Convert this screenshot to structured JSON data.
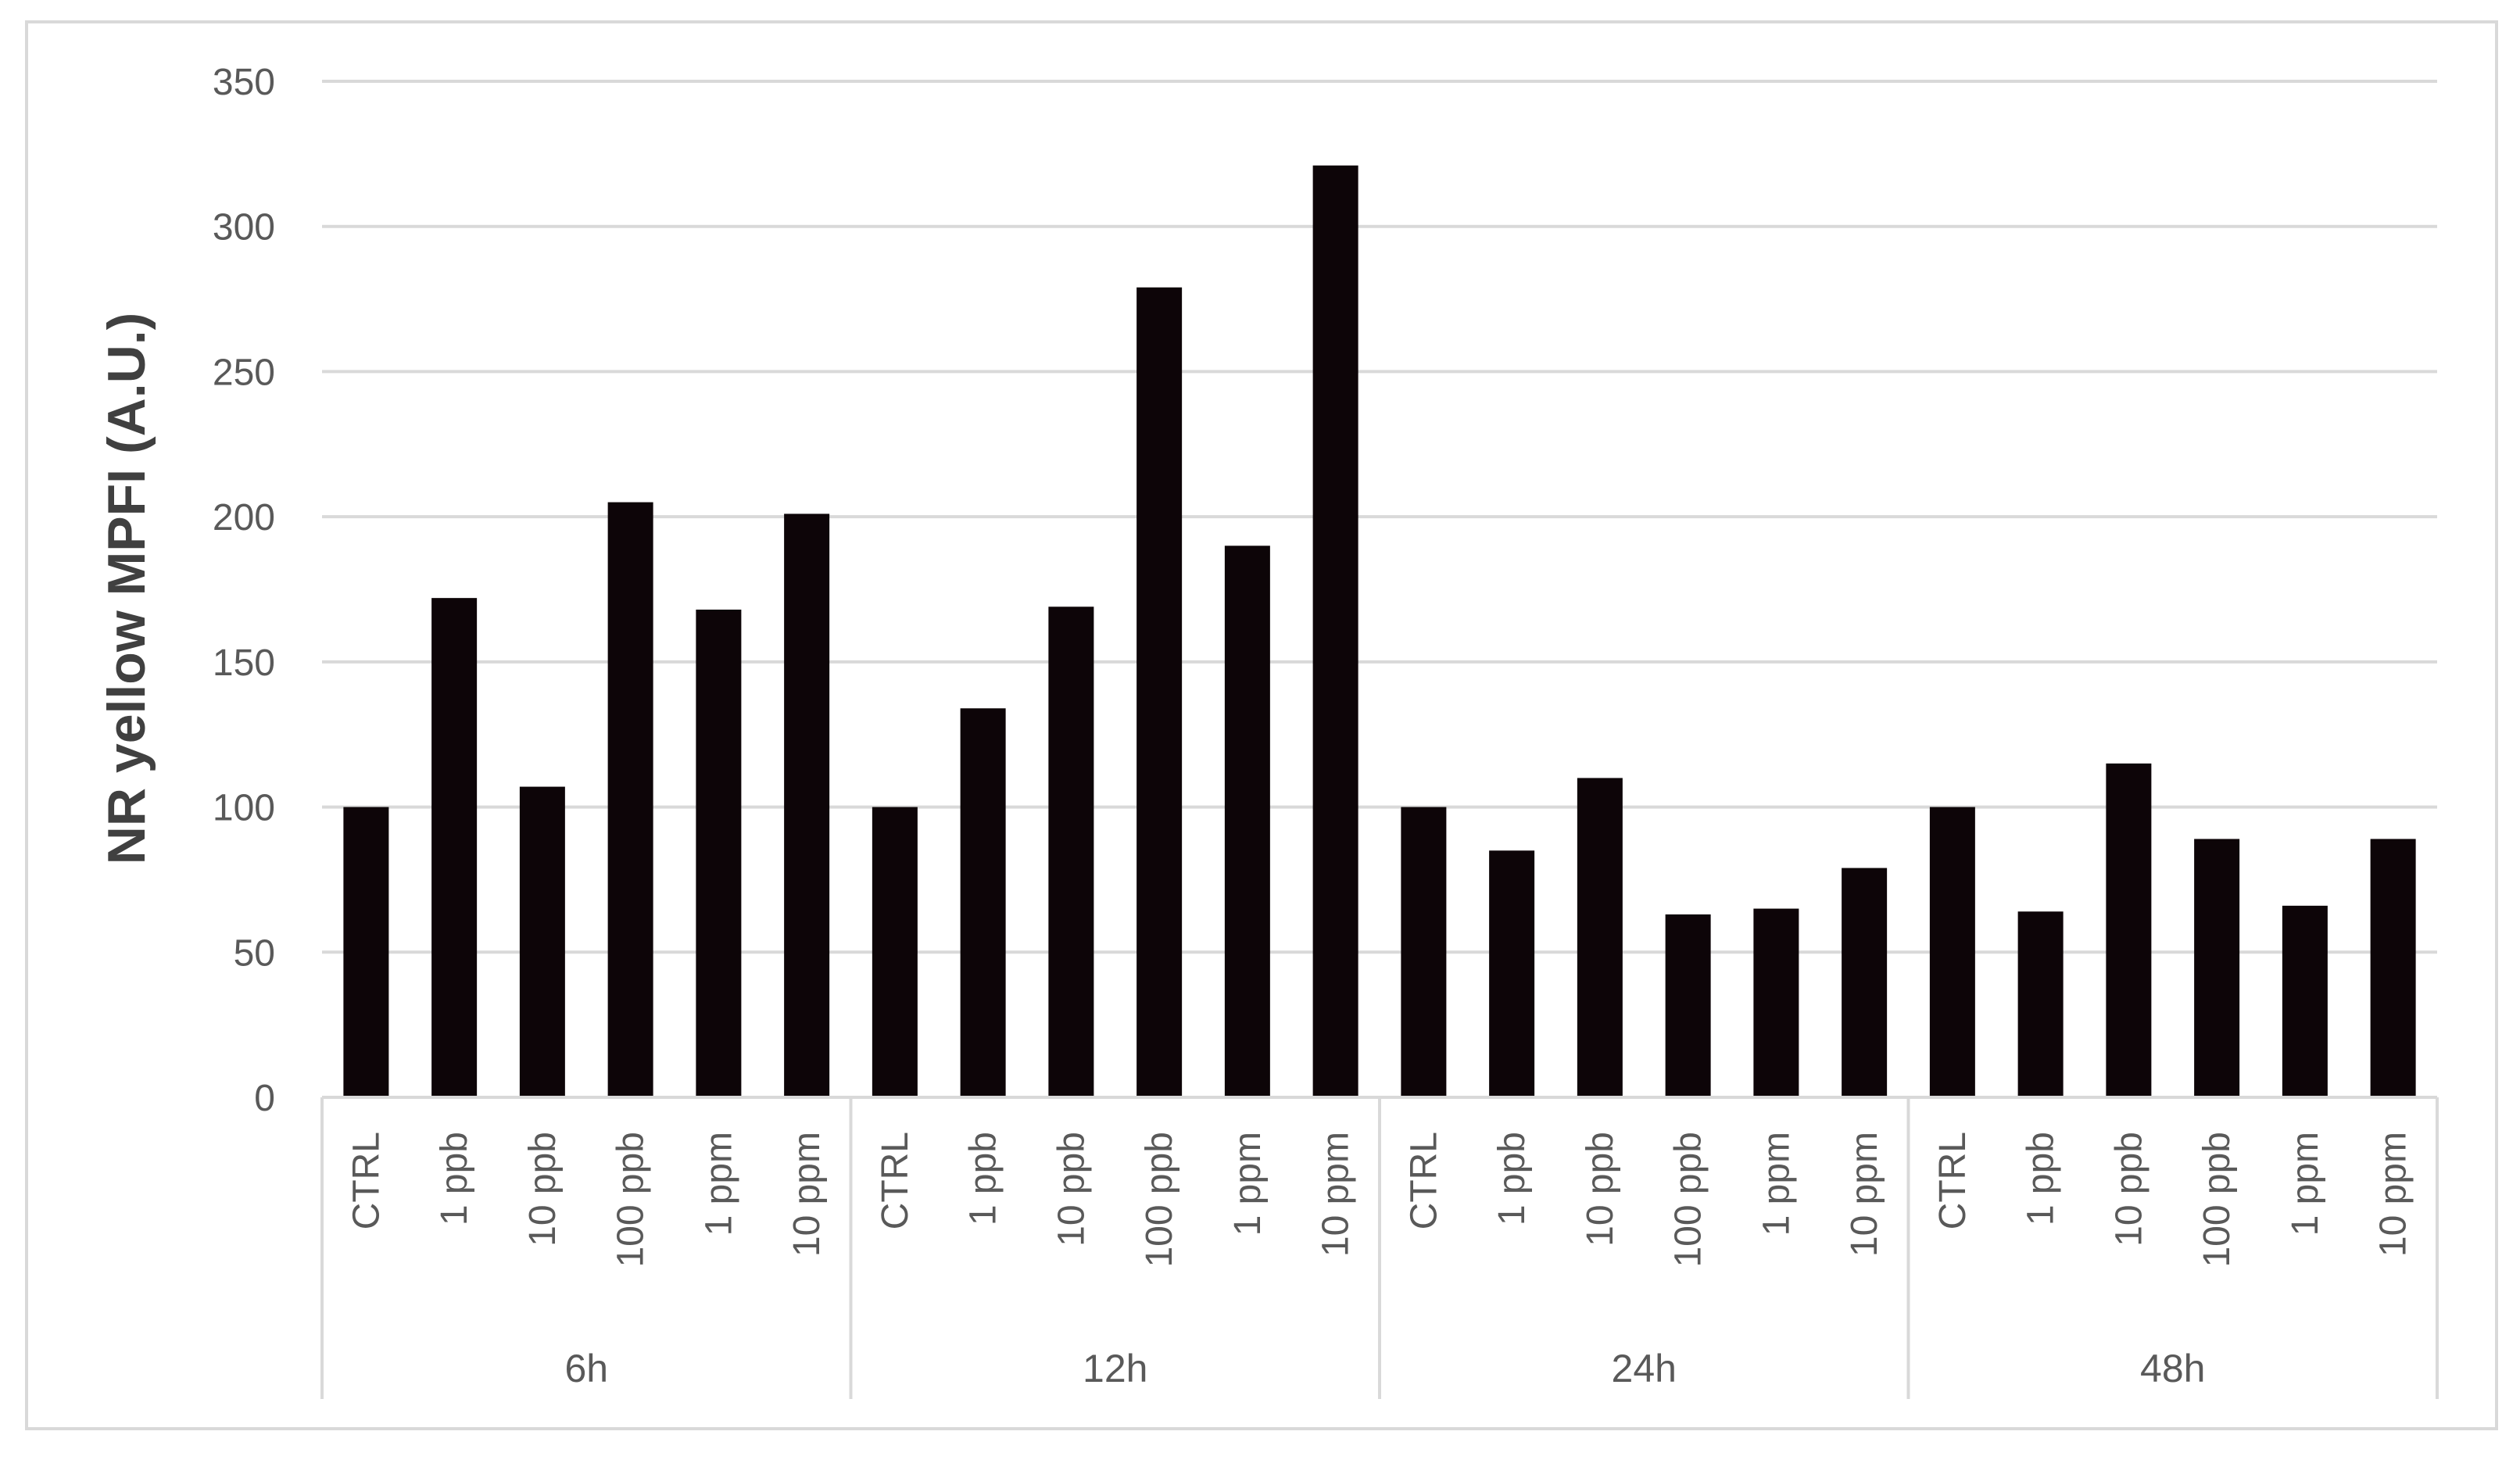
{
  "chart_data": {
    "type": "bar",
    "title": "",
    "xlabel": "",
    "ylabel": "NR yellow MPFI (A.U.)",
    "ylim": [
      0,
      350
    ],
    "yticks": [
      0,
      50,
      100,
      150,
      200,
      250,
      300,
      350
    ],
    "grid": true,
    "legend": "none",
    "bar_color": "#0d0508",
    "grid_color": "#d9d9d9",
    "groups": [
      {
        "label": "6h",
        "categories": [
          "CTRL",
          "1 ppb",
          "10 ppb",
          "100 ppb",
          "1 ppm",
          "10 ppm"
        ],
        "values": [
          100,
          172,
          107,
          205,
          168,
          201
        ]
      },
      {
        "label": "12h",
        "categories": [
          "CTRL",
          "1 ppb",
          "10 ppb",
          "100 ppb",
          "1 ppm",
          "10 ppm"
        ],
        "values": [
          100,
          134,
          169,
          279,
          190,
          321
        ]
      },
      {
        "label": "24h",
        "categories": [
          "CTRL",
          "1 ppb",
          "10 ppb",
          "100 ppb",
          "1 ppm",
          "10 ppm"
        ],
        "values": [
          100,
          85,
          110,
          63,
          65,
          79
        ]
      },
      {
        "label": "48h",
        "categories": [
          "CTRL",
          "1 ppb",
          "10 ppb",
          "100 ppb",
          "1 ppm",
          "10 ppm"
        ],
        "values": [
          100,
          64,
          115,
          89,
          66,
          89
        ]
      }
    ]
  }
}
